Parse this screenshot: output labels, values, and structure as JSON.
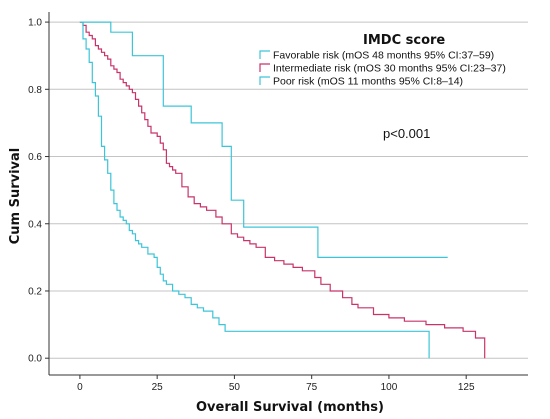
{
  "chart_data": {
    "type": "line",
    "title": "",
    "xlabel": "Overall Survival (months)",
    "ylabel": "Cum Survival",
    "xlim": [
      -10,
      145
    ],
    "ylim": [
      -0.05,
      1.03
    ],
    "x_ticks": [
      0,
      25,
      50,
      75,
      100,
      125
    ],
    "x_tick_labels": [
      "0",
      "25",
      "50",
      "75",
      "100",
      "125"
    ],
    "y_ticks": [
      0.0,
      0.2,
      0.4,
      0.6,
      0.8,
      1.0
    ],
    "y_tick_labels": [
      "0.0",
      "0.2",
      "0.4",
      "0.6",
      "0.8",
      "1.0"
    ],
    "grid": "horizontal",
    "legend_title": "IMDC score",
    "legend_position": "top-right",
    "annotation": "p<0.001",
    "series": [
      {
        "name": "Favorable risk (mOS 48 months 95% CI:37–59)",
        "color": "#3cc5d8",
        "x": [
          0,
          9,
          10,
          15,
          17,
          24,
          27,
          33,
          36,
          46,
          49,
          53,
          77,
          119
        ],
        "y": [
          1.0,
          1.0,
          0.97,
          0.97,
          0.9,
          0.9,
          0.75,
          0.75,
          0.7,
          0.63,
          0.47,
          0.39,
          0.3,
          0.3
        ]
      },
      {
        "name": "Intermediate risk (mOS 30 months 95% CI:23–37)",
        "color": "#c8336a",
        "x": [
          0,
          1,
          2,
          3,
          4,
          5,
          6,
          7,
          8,
          9,
          10,
          11,
          12,
          13,
          14,
          15,
          16,
          17,
          18,
          19,
          20,
          21,
          22,
          23,
          25,
          26,
          27,
          28,
          29,
          30,
          31,
          33,
          35,
          37,
          39,
          41,
          44,
          46,
          49,
          51,
          53,
          55,
          57,
          60,
          63,
          66,
          69,
          72,
          76,
          78,
          81,
          85,
          88,
          90,
          95,
          100,
          105,
          112,
          118,
          124,
          128,
          131
        ],
        "y": [
          1.0,
          0.99,
          0.97,
          0.96,
          0.95,
          0.93,
          0.92,
          0.91,
          0.9,
          0.89,
          0.87,
          0.86,
          0.85,
          0.83,
          0.82,
          0.81,
          0.8,
          0.79,
          0.77,
          0.75,
          0.73,
          0.71,
          0.69,
          0.67,
          0.66,
          0.64,
          0.62,
          0.58,
          0.57,
          0.56,
          0.55,
          0.51,
          0.48,
          0.46,
          0.45,
          0.44,
          0.42,
          0.4,
          0.37,
          0.36,
          0.35,
          0.34,
          0.33,
          0.3,
          0.29,
          0.28,
          0.27,
          0.26,
          0.24,
          0.22,
          0.2,
          0.18,
          0.16,
          0.15,
          0.13,
          0.12,
          0.11,
          0.1,
          0.09,
          0.08,
          0.06,
          0.0
        ]
      },
      {
        "name": "Poor risk (mOS 11 months 95% CI:8–14)",
        "color": "#3cc5d8",
        "x": [
          0,
          1,
          2,
          3,
          4,
          5,
          6,
          7,
          8,
          9,
          10,
          11,
          12,
          13,
          14,
          15,
          16,
          17,
          18,
          19,
          20,
          22,
          24,
          25,
          26,
          27,
          28,
          30,
          32,
          34,
          36,
          38,
          40,
          43,
          45,
          47,
          113
        ],
        "y": [
          1.0,
          0.95,
          0.92,
          0.88,
          0.82,
          0.78,
          0.72,
          0.63,
          0.59,
          0.55,
          0.5,
          0.46,
          0.44,
          0.42,
          0.41,
          0.4,
          0.38,
          0.37,
          0.35,
          0.34,
          0.33,
          0.31,
          0.3,
          0.27,
          0.25,
          0.23,
          0.22,
          0.2,
          0.19,
          0.18,
          0.16,
          0.15,
          0.14,
          0.12,
          0.1,
          0.08,
          0.0
        ]
      }
    ]
  }
}
